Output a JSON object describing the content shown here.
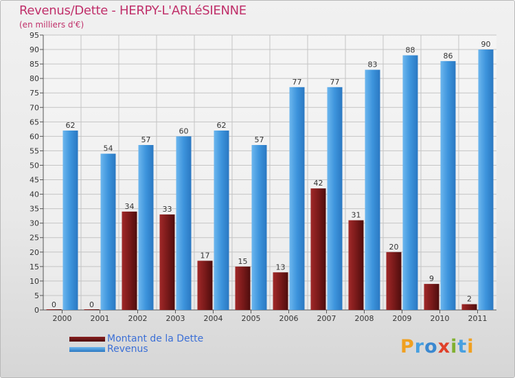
{
  "chart_data": {
    "type": "bar",
    "title": "Revenus/Dette - HERPY-L'ARLéSIENNE",
    "subtitle": "(en milliers d'€)",
    "categories": [
      "2000",
      "2001",
      "2002",
      "2003",
      "2004",
      "2005",
      "2006",
      "2007",
      "2008",
      "2009",
      "2010",
      "2011"
    ],
    "series": [
      {
        "name": "Montant de la Dette",
        "color": "#7a1a1a",
        "values": [
          0,
          0,
          34,
          33,
          17,
          15,
          13,
          42,
          31,
          20,
          9,
          2
        ]
      },
      {
        "name": "Revenus",
        "color": "#3d94dc",
        "values": [
          62,
          54,
          57,
          60,
          62,
          57,
          77,
          77,
          83,
          88,
          86,
          90
        ]
      }
    ],
    "ylim": [
      0,
      95
    ],
    "ytick_step": 5,
    "grid": true,
    "xlabel": "",
    "ylabel": "",
    "legend": "bottom-left"
  },
  "logo": {
    "text": "Proxiti"
  }
}
